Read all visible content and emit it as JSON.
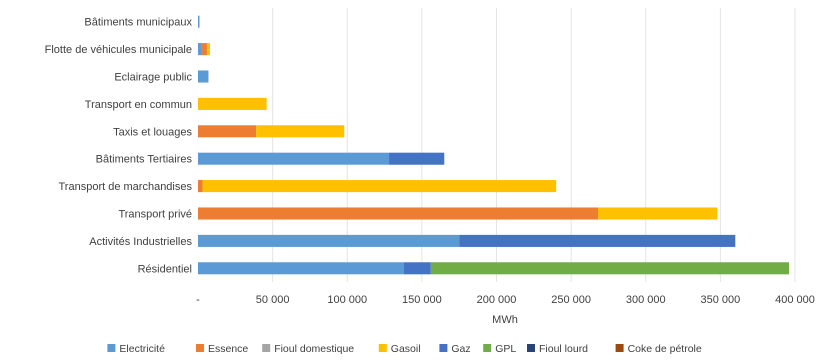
{
  "chart_data": {
    "type": "bar",
    "orientation": "horizontal",
    "stacked": true,
    "title": "",
    "xlabel": "MWh",
    "ylabel": "",
    "xlim": [
      0,
      400000
    ],
    "xticks": [
      0,
      50000,
      100000,
      150000,
      200000,
      250000,
      300000,
      350000,
      400000
    ],
    "xtick_labels": [
      "-",
      "50 000",
      "100 000",
      "150 000",
      "200 000",
      "250 000",
      "300 000",
      "350 000",
      "400 000"
    ],
    "grid": true,
    "legend_position": "bottom",
    "categories": [
      "Bâtiments municipaux",
      "Flotte de véhicules municipale",
      "Eclairage public",
      "Transport en commun",
      "Taxis et louages",
      "Bâtiments Tertiaires",
      "Transport de marchandises",
      "Transport privé",
      "Activités Industrielles",
      "Résidentiel"
    ],
    "series": [
      {
        "name": "Electricité",
        "color": "#5b9bd5",
        "values": [
          1000,
          2000,
          7000,
          0,
          0,
          128000,
          0,
          0,
          175000,
          138000
        ]
      },
      {
        "name": "Essence",
        "color": "#ed7d31",
        "values": [
          0,
          4000,
          0,
          0,
          39000,
          0,
          3000,
          268000,
          0,
          0
        ]
      },
      {
        "name": "Fioul domestique",
        "color": "#a5a5a5",
        "values": [
          0,
          0,
          0,
          0,
          0,
          0,
          0,
          0,
          0,
          0
        ]
      },
      {
        "name": "Gasoil",
        "color": "#ffc000",
        "values": [
          0,
          2000,
          0,
          46000,
          59000,
          0,
          237000,
          80000,
          0,
          0
        ]
      },
      {
        "name": "Gaz",
        "color": "#4472c4",
        "values": [
          0,
          0,
          0,
          0,
          0,
          37000,
          0,
          0,
          185000,
          18000
        ]
      },
      {
        "name": "GPL",
        "color": "#70ad47",
        "values": [
          0,
          0,
          0,
          0,
          0,
          0,
          0,
          0,
          0,
          240000
        ]
      },
      {
        "name": "Fioul lourd",
        "color": "#264478",
        "values": [
          0,
          0,
          0,
          0,
          0,
          0,
          0,
          0,
          0,
          0
        ]
      },
      {
        "name": "Coke de pétrole",
        "color": "#9e480e",
        "values": [
          0,
          0,
          0,
          0,
          0,
          0,
          0,
          0,
          0,
          0
        ]
      }
    ]
  }
}
